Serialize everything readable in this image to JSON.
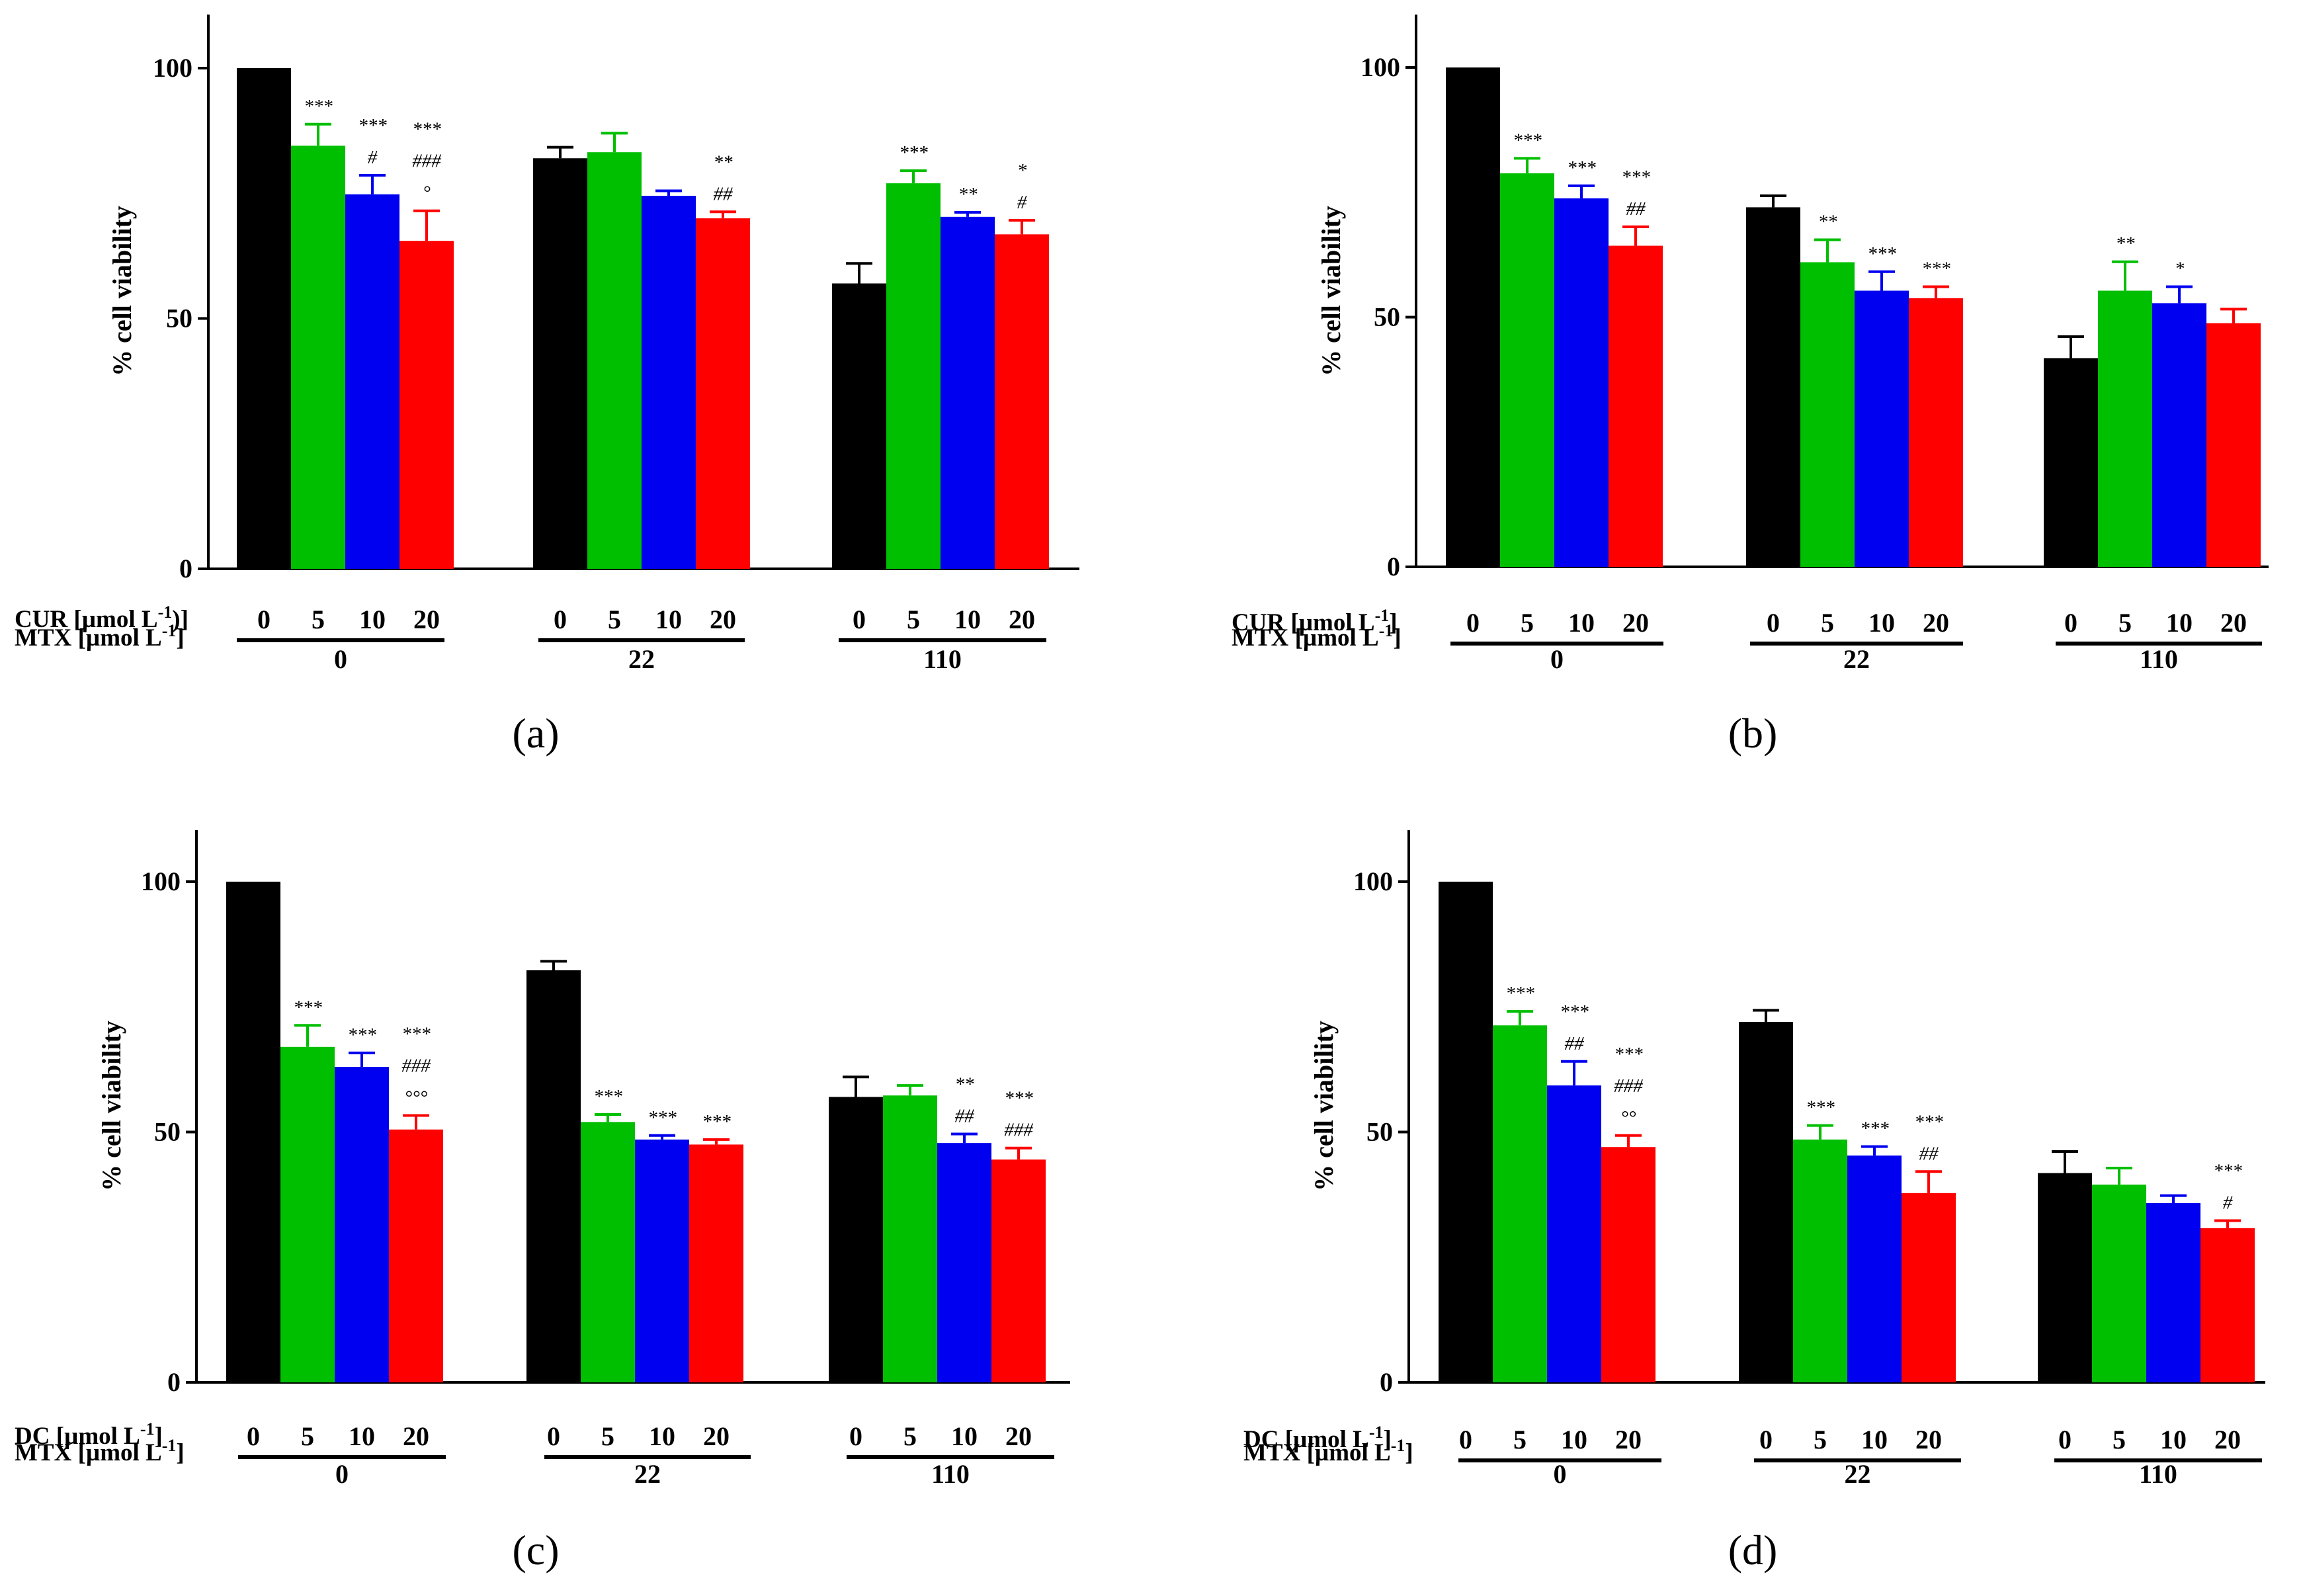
{
  "colors": {
    "bar_colors": [
      "#000000",
      "#00bf00",
      "#0000f0",
      "#ff0000"
    ],
    "axis": "#000000",
    "background": "#ffffff"
  },
  "chart_data": [
    {
      "type": "bar",
      "panel_label": "(a)",
      "ylabel": "% cell viability",
      "ylim": [
        0,
        110
      ],
      "yticks": [
        0,
        50,
        100
      ],
      "row_labels": {
        "top": "CUR [µmol L",
        "top_suffix": ")]",
        "bottom": "MTX [µmol L"
      },
      "sub_categories": [
        "0",
        "5",
        "10",
        "20"
      ],
      "groups": [
        {
          "label": "0",
          "values": [
            100,
            84.5,
            74.8,
            65.5
          ],
          "errors": [
            0,
            4.3,
            3.8,
            6.0
          ],
          "annotations": [
            [],
            [
              "***"
            ],
            [
              "***",
              "#"
            ],
            [
              "***",
              "###",
              "°"
            ]
          ]
        },
        {
          "label": "22",
          "values": [
            82.0,
            83.2,
            74.5,
            70.0
          ],
          "errors": [
            2.2,
            3.8,
            1.0,
            1.3
          ],
          "annotations": [
            [],
            [],
            [],
            [
              "**",
              "##"
            ]
          ]
        },
        {
          "label": "110",
          "values": [
            57.0,
            77.0,
            70.3,
            66.8
          ],
          "errors": [
            4.0,
            2.5,
            0.9,
            2.8
          ],
          "annotations": [
            [],
            [
              "***"
            ],
            [
              "**"
            ],
            [
              "*",
              "#"
            ]
          ]
        }
      ]
    },
    {
      "type": "bar",
      "panel_label": "(b)",
      "ylabel": "% cell viability",
      "ylim": [
        0,
        110
      ],
      "yticks": [
        0,
        50,
        100
      ],
      "row_labels": {
        "top": "CUR [µmol L",
        "top_suffix": "]",
        "bottom": "MTX [µmol L"
      },
      "sub_categories": [
        "0",
        "5",
        "10",
        "20"
      ],
      "groups": [
        {
          "label": "0",
          "values": [
            100,
            78.8,
            73.8,
            64.3
          ],
          "errors": [
            0,
            3.0,
            2.5,
            3.8
          ],
          "annotations": [
            [],
            [
              "***"
            ],
            [
              "***"
            ],
            [
              "***",
              "##"
            ]
          ]
        },
        {
          "label": "22",
          "values": [
            72.0,
            61.0,
            55.3,
            53.8
          ],
          "errors": [
            2.3,
            4.5,
            3.8,
            2.3
          ],
          "annotations": [
            [],
            [
              "**"
            ],
            [
              "***"
            ],
            [
              "***"
            ]
          ]
        },
        {
          "label": "110",
          "values": [
            41.8,
            55.3,
            52.8,
            48.8
          ],
          "errors": [
            4.3,
            5.8,
            3.3,
            2.8
          ],
          "annotations": [
            [],
            [
              "**"
            ],
            [
              "*"
            ],
            []
          ]
        }
      ]
    },
    {
      "type": "bar",
      "panel_label": "(c)",
      "ylabel": "% cell viability",
      "ylim": [
        0,
        110
      ],
      "yticks": [
        0,
        50,
        100
      ],
      "row_labels": {
        "top": "DC [µmol L",
        "top_suffix": "]",
        "bottom": "MTX [µmol L"
      },
      "sub_categories": [
        "0",
        "5",
        "10",
        "20"
      ],
      "groups": [
        {
          "label": "0",
          "values": [
            100,
            67.0,
            63.0,
            50.5
          ],
          "errors": [
            0,
            4.3,
            2.8,
            2.8
          ],
          "annotations": [
            [],
            [
              "***"
            ],
            [
              "***"
            ],
            [
              "***",
              "###",
              "°°°"
            ]
          ]
        },
        {
          "label": "22",
          "values": [
            82.3,
            52.0,
            48.5,
            47.5
          ],
          "errors": [
            1.8,
            1.5,
            0.8,
            1.0
          ],
          "annotations": [
            [],
            [
              "***"
            ],
            [
              "***"
            ],
            [
              "***"
            ]
          ]
        },
        {
          "label": "110",
          "values": [
            57.0,
            57.3,
            47.8,
            44.5
          ],
          "errors": [
            4.0,
            2.0,
            1.8,
            2.3
          ],
          "annotations": [
            [],
            [],
            [
              "**",
              "##"
            ],
            [
              "***",
              "###"
            ]
          ]
        }
      ]
    },
    {
      "type": "bar",
      "panel_label": "(d)",
      "ylabel": "% cell viability",
      "ylim": [
        0,
        110
      ],
      "yticks": [
        0,
        50,
        100
      ],
      "row_labels": {
        "top": "DC [µmol L",
        "top_suffix": "]",
        "bottom": "MTX [µmol L"
      },
      "sub_categories": [
        "0",
        "5",
        "10",
        "20"
      ],
      "groups": [
        {
          "label": "0",
          "values": [
            100,
            71.3,
            59.3,
            47.0
          ],
          "errors": [
            0,
            2.8,
            4.8,
            2.3
          ],
          "annotations": [
            [],
            [
              "***"
            ],
            [
              "***",
              "##"
            ],
            [
              "***",
              "###",
              "°°"
            ]
          ]
        },
        {
          "label": "22",
          "values": [
            72.0,
            48.5,
            45.3,
            37.8
          ],
          "errors": [
            2.3,
            2.8,
            1.8,
            4.3
          ],
          "annotations": [
            [],
            [
              "***"
            ],
            [
              "***"
            ],
            [
              "***",
              "##"
            ]
          ]
        },
        {
          "label": "110",
          "values": [
            41.8,
            39.5,
            35.8,
            30.8
          ],
          "errors": [
            4.3,
            3.3,
            1.5,
            1.5
          ],
          "annotations": [
            [],
            [],
            [],
            [
              "***",
              "#"
            ]
          ]
        }
      ]
    }
  ]
}
